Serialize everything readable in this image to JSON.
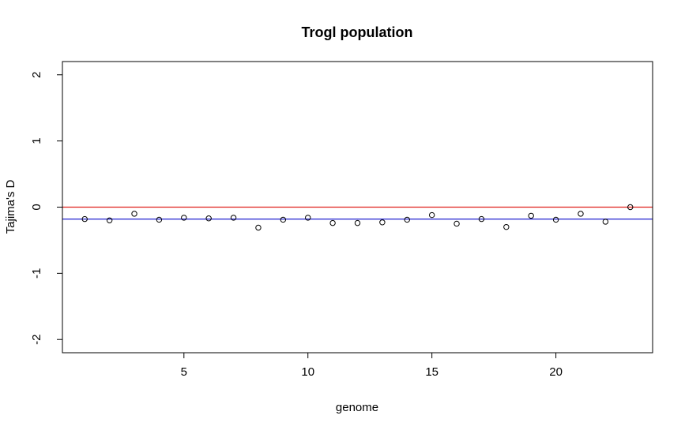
{
  "chart_data": {
    "type": "scatter",
    "title": "Trogl population",
    "xlabel": "genome",
    "ylabel": "Tajima's D",
    "xlim": [
      0.1,
      23.9
    ],
    "ylim": [
      -2.2,
      2.2
    ],
    "x_ticks": [
      5,
      10,
      15,
      20
    ],
    "y_ticks": [
      -2,
      -1,
      0,
      1,
      2
    ],
    "x_tick_labels": [
      "5",
      "10",
      "15",
      "20"
    ],
    "y_tick_labels": [
      "-2",
      "-1",
      "0",
      "1",
      "2"
    ],
    "grid": false,
    "legend": "none",
    "reference_lines": [
      {
        "y": 0,
        "color": "#e0201b"
      },
      {
        "y": -0.18,
        "color": "#1f1fcf"
      }
    ],
    "series": [
      {
        "x": [
          1,
          2,
          3,
          4,
          5,
          6,
          7,
          8,
          9,
          10,
          11,
          12,
          13,
          14,
          15,
          16,
          17,
          18,
          19,
          20,
          21,
          22,
          23
        ],
        "y": [
          -0.18,
          -0.2,
          -0.1,
          -0.19,
          -0.16,
          -0.17,
          -0.16,
          -0.31,
          -0.19,
          -0.16,
          -0.24,
          -0.24,
          -0.23,
          -0.19,
          -0.12,
          -0.25,
          -0.18,
          -0.3,
          -0.13,
          -0.19,
          -0.1,
          -0.22,
          0.0
        ],
        "marker": "open-circle",
        "color": "#000000"
      }
    ]
  }
}
